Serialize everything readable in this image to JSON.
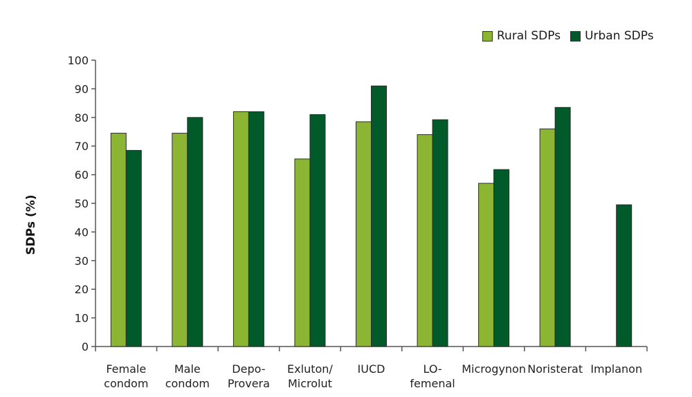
{
  "chart_data": {
    "type": "bar",
    "categories": [
      [
        "Female",
        "condom"
      ],
      [
        "Male",
        "condom"
      ],
      [
        "Depo-",
        "Provera"
      ],
      [
        "Exluton/",
        "Microlut"
      ],
      [
        "IUCD"
      ],
      [
        "LO-",
        "femenal"
      ],
      [
        "Microgynon"
      ],
      [
        "Noristerat"
      ],
      [
        "Implanon"
      ]
    ],
    "series": [
      {
        "name": "Rural SDPs",
        "color": "#8db534",
        "values": [
          74.5,
          74.5,
          82,
          65.5,
          78.5,
          74,
          57,
          76,
          null
        ]
      },
      {
        "name": "Urban SDPs",
        "color": "#005a2a",
        "values": [
          68.5,
          80,
          82,
          81,
          91,
          79.2,
          61.8,
          83.5,
          49.5
        ]
      }
    ],
    "ylabel": "SDPs (%)",
    "ylim": [
      0,
      100
    ],
    "yticks": [
      "0",
      "10",
      "20",
      "30",
      "40",
      "50",
      "60",
      "70",
      "80",
      "90",
      "100"
    ],
    "legend_position": "top-right",
    "grid": false
  }
}
